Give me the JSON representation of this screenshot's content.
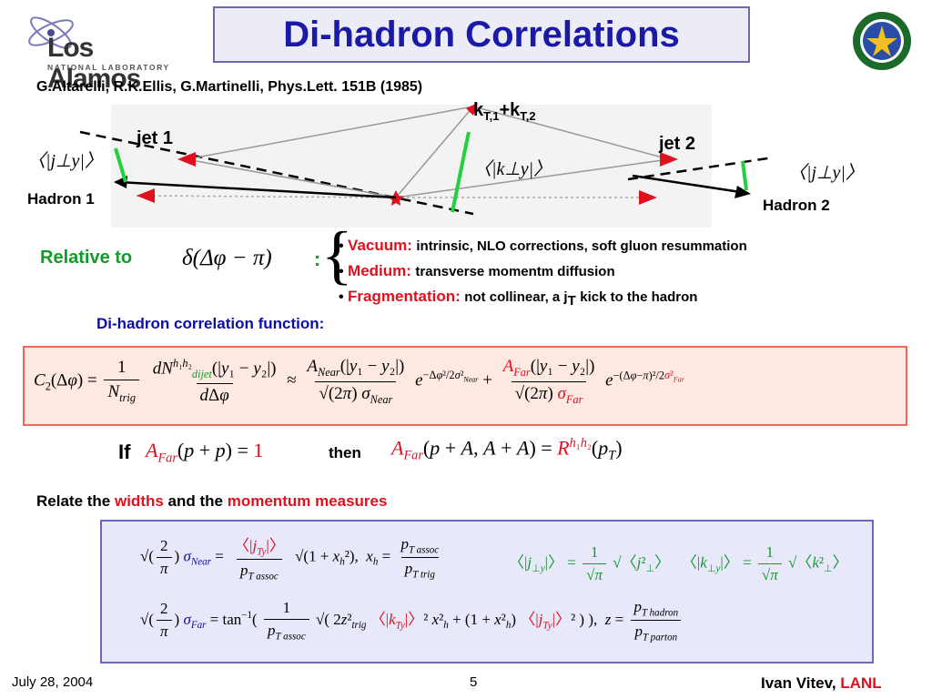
{
  "header": {
    "title": "Di-hadron Correlations",
    "logo_name": "Los Alamos",
    "logo_sub": "NATIONAL LABORATORY",
    "reference": "G.Altarelli, R.K.Ellis, G.Martinelli, Phys.Lett. 151B (1985)"
  },
  "diagram": {
    "jet1": "jet 1",
    "jet2": "jet 2",
    "kt_label": "k",
    "kt_sub1": "T,1",
    "plus": "+k",
    "kt_sub2": "T,2",
    "hadron1": "Hadron 1",
    "hadron2": "Hadron 2",
    "j_perp_y": "〈|j⊥y|〉",
    "k_perp_y": "〈|k⊥y|〉"
  },
  "relative": {
    "label": "Relative to",
    "formula": "δ(Δφ − π)",
    "colon": ":",
    "items": [
      {
        "key": "Vacuum:",
        "text": "intrinsic, NLO corrections, soft gluon resummation"
      },
      {
        "key": "Medium:",
        "text": "transverse momentm diffusion"
      },
      {
        "key": "Fragmentation:",
        "text": "not collinear, a j"
      }
    ],
    "frag_sub": "T",
    "frag_tail": "kick to the hadron"
  },
  "corr_heading": "Di-hadron correlation function:",
  "if_block": {
    "if": "If",
    "cond": "A_Far(p+p) = 1",
    "then": "then",
    "result": "A_Far(p+A, A+A) = R^{h1h2}(p_T)"
  },
  "relate": {
    "prefix": "Relate the ",
    "widths": "widths",
    "mid": " and the ",
    "momentum": "momentum measures"
  },
  "footer": {
    "date": "July 28, 2004",
    "page": "5",
    "author": "Ivan Vitev",
    "sep": ", ",
    "org": "LANL"
  },
  "colors": {
    "title_blue": "#1a1aa6",
    "accent_red": "#e0101e",
    "green": "#139a2a",
    "heading_blue": "#0c0caa"
  }
}
